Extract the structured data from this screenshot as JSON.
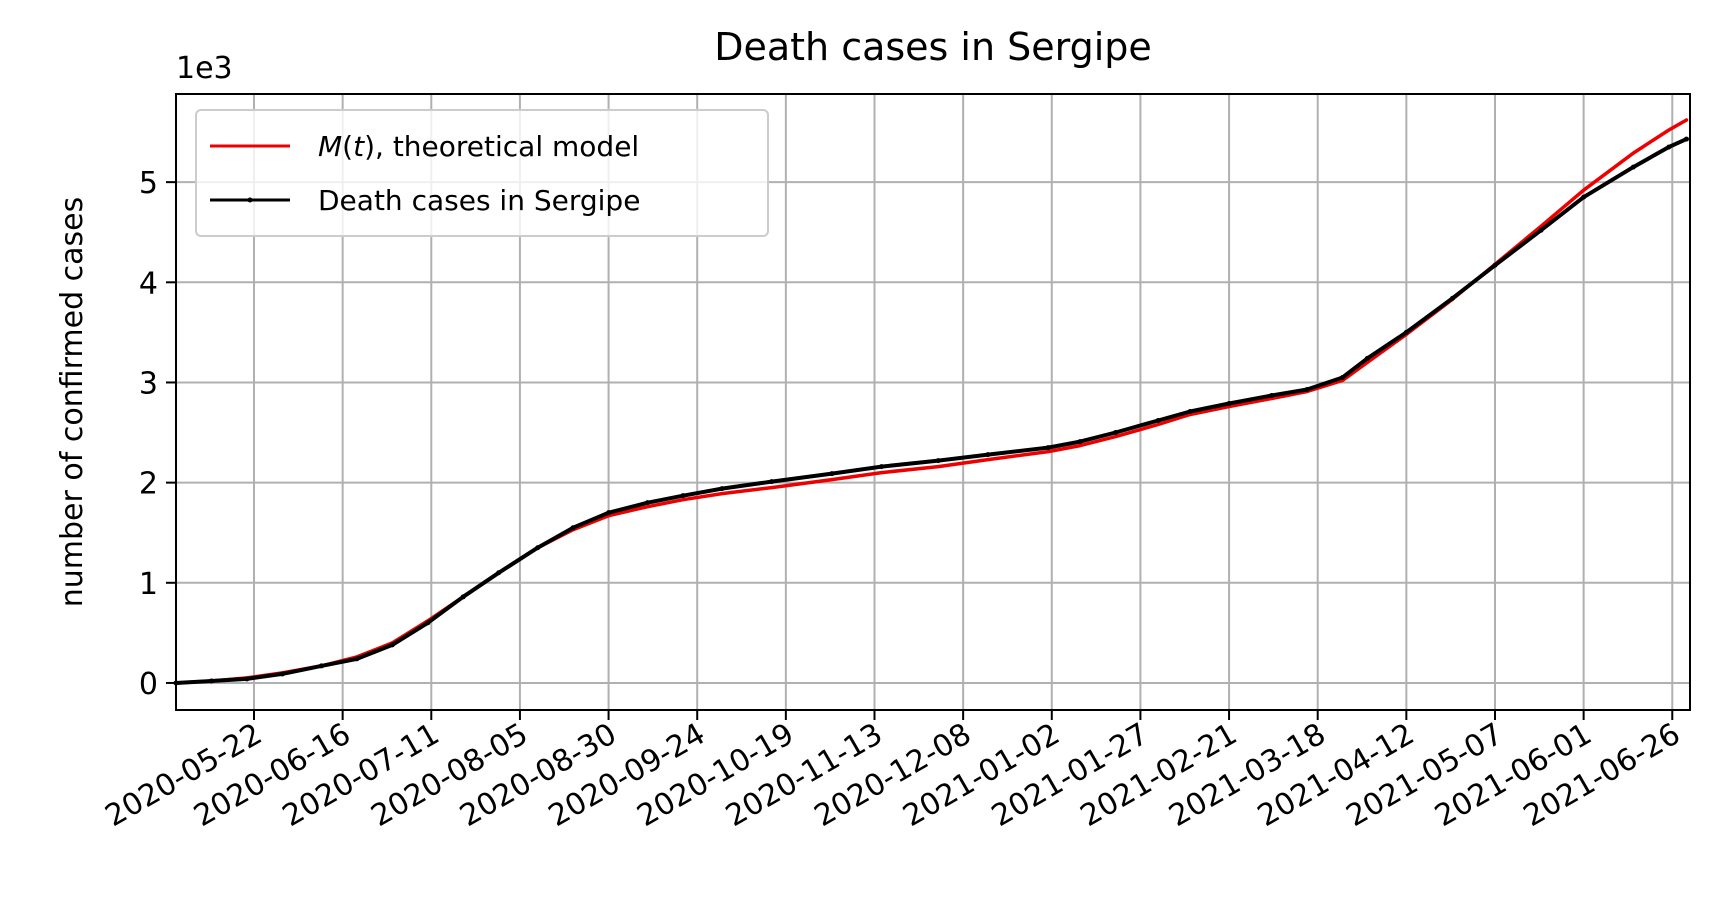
{
  "chart_data": {
    "type": "line",
    "title": "Death cases in Sergipe",
    "ylabel": "number of confirmed cases",
    "xlabel": "",
    "y_offset_label": "1e3",
    "y_multiplier": 1000,
    "xlim": [
      "2020-04-30",
      "2021-07-01"
    ],
    "ylim": [
      -0.27,
      5.88
    ],
    "grid": true,
    "legend_position": "top-left",
    "x_ticks": [
      "2020-05-22",
      "2020-06-16",
      "2020-07-11",
      "2020-08-05",
      "2020-08-30",
      "2020-09-24",
      "2020-10-19",
      "2020-11-13",
      "2020-12-08",
      "2021-01-02",
      "2021-01-27",
      "2021-02-21",
      "2021-03-18",
      "2021-04-12",
      "2021-05-07",
      "2021-06-01",
      "2021-06-26"
    ],
    "y_ticks": [
      0,
      1,
      2,
      3,
      4,
      5
    ],
    "series": [
      {
        "name": "M(t), theoretical model",
        "name_prefix": "M",
        "name_paren": "(",
        "name_var": "t",
        "name_suffix": "), theoretical model",
        "color": "#ee0000",
        "marker": false,
        "points": [
          [
            "2020-04-30",
            0.0
          ],
          [
            "2020-05-10",
            0.02
          ],
          [
            "2020-05-20",
            0.05
          ],
          [
            "2020-05-30",
            0.1
          ],
          [
            "2020-06-10",
            0.17
          ],
          [
            "2020-06-20",
            0.26
          ],
          [
            "2020-06-30",
            0.4
          ],
          [
            "2020-07-10",
            0.62
          ],
          [
            "2020-07-20",
            0.86
          ],
          [
            "2020-07-30",
            1.1
          ],
          [
            "2020-08-10",
            1.35
          ],
          [
            "2020-08-20",
            1.53
          ],
          [
            "2020-08-30",
            1.67
          ],
          [
            "2020-09-10",
            1.76
          ],
          [
            "2020-09-20",
            1.83
          ],
          [
            "2020-10-01",
            1.89
          ],
          [
            "2020-10-15",
            1.95
          ],
          [
            "2020-11-01",
            2.03
          ],
          [
            "2020-11-15",
            2.1
          ],
          [
            "2020-12-01",
            2.16
          ],
          [
            "2020-12-15",
            2.23
          ],
          [
            "2021-01-01",
            2.31
          ],
          [
            "2021-01-10",
            2.37
          ],
          [
            "2021-01-20",
            2.46
          ],
          [
            "2021-02-01",
            2.58
          ],
          [
            "2021-02-10",
            2.68
          ],
          [
            "2021-02-21",
            2.76
          ],
          [
            "2021-03-05",
            2.84
          ],
          [
            "2021-03-15",
            2.91
          ],
          [
            "2021-03-25",
            3.02
          ],
          [
            "2021-04-01",
            3.2
          ],
          [
            "2021-04-12",
            3.48
          ],
          [
            "2021-04-25",
            3.83
          ],
          [
            "2021-05-07",
            4.18
          ],
          [
            "2021-05-20",
            4.56
          ],
          [
            "2021-06-01",
            4.92
          ],
          [
            "2021-06-15",
            5.29
          ],
          [
            "2021-06-25",
            5.52
          ],
          [
            "2021-06-30",
            5.62
          ]
        ]
      },
      {
        "name": "Death cases in Sergipe",
        "color": "#000000",
        "marker": true,
        "points": [
          [
            "2020-04-30",
            0.0
          ],
          [
            "2020-05-10",
            0.02
          ],
          [
            "2020-05-20",
            0.04
          ],
          [
            "2020-05-30",
            0.09
          ],
          [
            "2020-06-10",
            0.17
          ],
          [
            "2020-06-20",
            0.24
          ],
          [
            "2020-06-30",
            0.38
          ],
          [
            "2020-07-10",
            0.6
          ],
          [
            "2020-07-20",
            0.86
          ],
          [
            "2020-07-30",
            1.1
          ],
          [
            "2020-08-10",
            1.35
          ],
          [
            "2020-08-20",
            1.55
          ],
          [
            "2020-08-30",
            1.7
          ],
          [
            "2020-09-10",
            1.8
          ],
          [
            "2020-09-20",
            1.87
          ],
          [
            "2020-10-01",
            1.94
          ],
          [
            "2020-10-15",
            2.01
          ],
          [
            "2020-11-01",
            2.09
          ],
          [
            "2020-11-15",
            2.16
          ],
          [
            "2020-12-01",
            2.22
          ],
          [
            "2020-12-15",
            2.28
          ],
          [
            "2021-01-01",
            2.35
          ],
          [
            "2021-01-10",
            2.41
          ],
          [
            "2021-01-20",
            2.5
          ],
          [
            "2021-02-01",
            2.62
          ],
          [
            "2021-02-10",
            2.71
          ],
          [
            "2021-02-21",
            2.79
          ],
          [
            "2021-03-05",
            2.87
          ],
          [
            "2021-03-15",
            2.93
          ],
          [
            "2021-03-25",
            3.05
          ],
          [
            "2021-04-01",
            3.24
          ],
          [
            "2021-04-12",
            3.5
          ],
          [
            "2021-04-25",
            3.84
          ],
          [
            "2021-05-07",
            4.17
          ],
          [
            "2021-05-20",
            4.52
          ],
          [
            "2021-06-01",
            4.85
          ],
          [
            "2021-06-15",
            5.15
          ],
          [
            "2021-06-25",
            5.35
          ],
          [
            "2021-06-30",
            5.43
          ]
        ]
      }
    ]
  }
}
